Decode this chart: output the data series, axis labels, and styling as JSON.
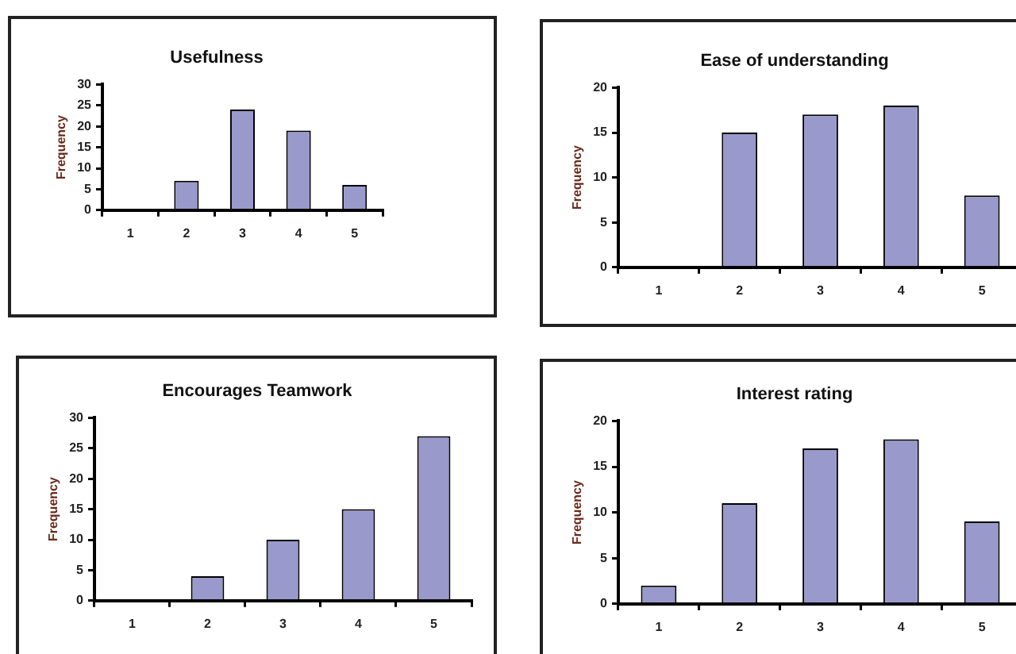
{
  "chart_data": [
    {
      "type": "bar",
      "title": "Usefulness",
      "ylabel": "Frequency",
      "categories": [
        "1",
        "2",
        "3",
        "4",
        "5"
      ],
      "values": [
        0,
        7,
        24,
        19,
        6
      ],
      "color": "#9999cc",
      "ylim": [
        0,
        30
      ],
      "yticks": [
        0,
        5,
        10,
        15,
        20,
        25,
        30
      ],
      "grid": false
    },
    {
      "type": "bar",
      "title": "Ease of understanding",
      "ylabel": "Frequency",
      "categories": [
        "1",
        "2",
        "3",
        "4",
        "5"
      ],
      "values": [
        0,
        15,
        17,
        18,
        8
      ],
      "color": "#9999cc",
      "ylim": [
        0,
        20
      ],
      "yticks": [
        0,
        5,
        10,
        15,
        20
      ],
      "grid": false
    },
    {
      "type": "bar",
      "title": "Encourages Teamwork",
      "ylabel": "Frequency",
      "categories": [
        "1",
        "2",
        "3",
        "4",
        "5"
      ],
      "values": [
        0,
        4,
        10,
        15,
        27
      ],
      "color": "#9999cc",
      "ylim": [
        0,
        30
      ],
      "yticks": [
        0,
        5,
        10,
        15,
        20,
        25,
        30
      ],
      "grid": false
    },
    {
      "type": "bar",
      "title": "Interest rating",
      "ylabel": "Frequency",
      "categories": [
        "1",
        "2",
        "3",
        "4",
        "5"
      ],
      "values": [
        2,
        11,
        17,
        18,
        9
      ],
      "color": "#9999cc",
      "ylim": [
        0,
        20
      ],
      "yticks": [
        0,
        5,
        10,
        15,
        20
      ],
      "grid": false
    }
  ]
}
